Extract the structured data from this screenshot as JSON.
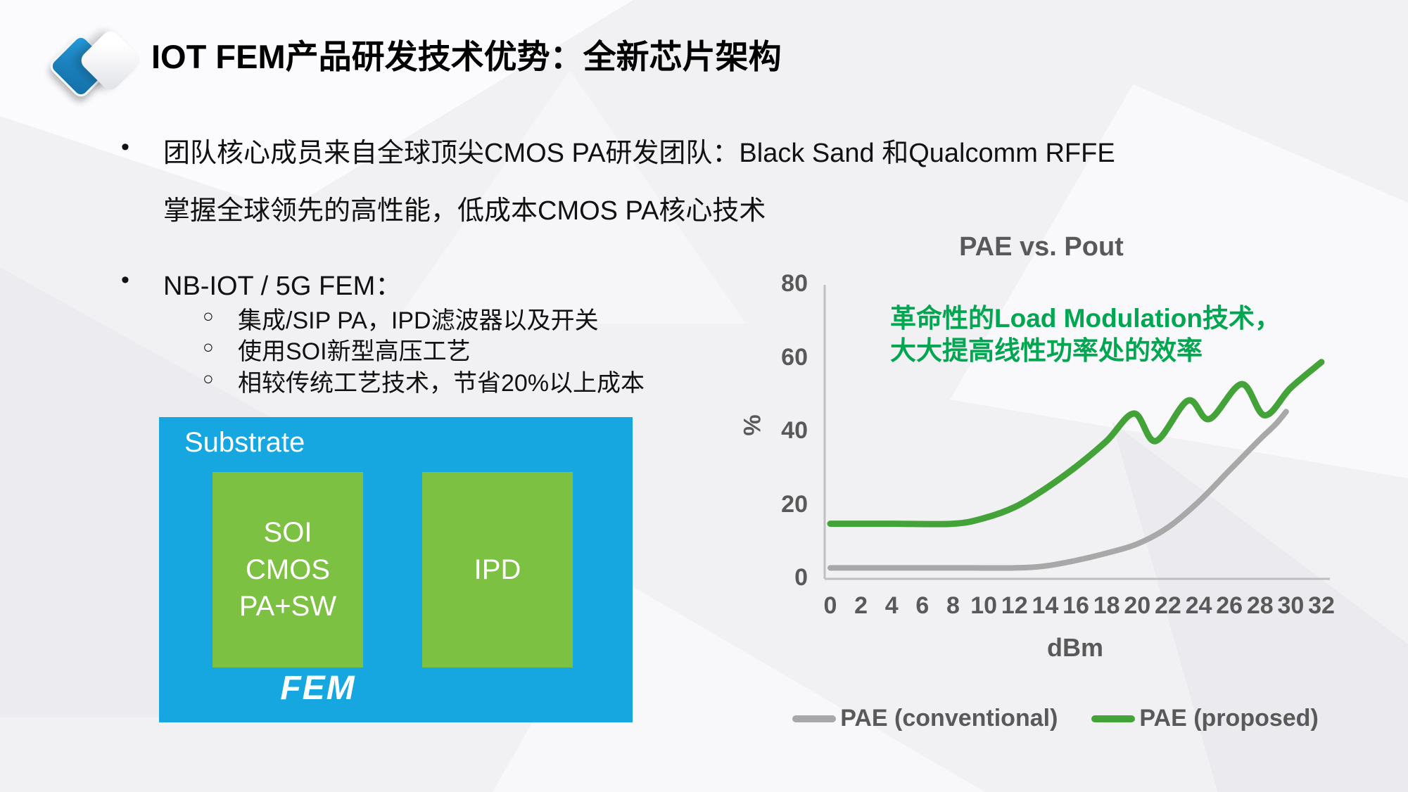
{
  "slide": {
    "title": "IOT FEM产品研发技术优势：全新芯片架构",
    "bullet_marker": "•",
    "sub_marker": "○",
    "bullet1_line1": "团队核心成员来自全球顶尖CMOS PA研发团队：Black Sand 和Qualcomm RFFE",
    "bullet1_line2": "掌握全球领先的高性能，低成本CMOS PA核心技术",
    "bullet2_label": "NB-IOT / 5G FEM：",
    "sub_bullets": [
      "集成/SIP PA，IPD滤波器以及开关",
      "使用SOI新型高压工艺",
      "相较传统工艺技术，节省20%以上成本"
    ]
  },
  "diagram": {
    "substrate_label": "Substrate",
    "chip1_lines": [
      "SOI",
      "CMOS",
      "PA+SW"
    ],
    "chip2_label": "IPD",
    "fem_label": "FEM",
    "colors": {
      "substrate_blue": "#17a7e0",
      "chip_green": "#7cc142"
    }
  },
  "chart_data": {
    "type": "line",
    "title": "PAE vs. Pout",
    "annotation_lines": [
      "革命性的Load Modulation技术，",
      "大大提高线性功率处的效率"
    ],
    "xlabel": "dBm",
    "ylabel": "%",
    "xlim": [
      0,
      32
    ],
    "ylim": [
      0,
      80
    ],
    "x_ticks": [
      0,
      2,
      4,
      6,
      8,
      10,
      12,
      14,
      16,
      18,
      20,
      22,
      24,
      26,
      28,
      30,
      32
    ],
    "y_ticks": [
      0,
      20,
      40,
      60,
      80
    ],
    "grid": false,
    "legend_position": "bottom",
    "axis_color": "#bfbfbf",
    "series": [
      {
        "name": "PAE (conventional)",
        "color": "#a8a8a8",
        "points": [
          [
            0,
            3
          ],
          [
            4,
            3
          ],
          [
            8,
            3
          ],
          [
            12,
            3
          ],
          [
            14,
            3.5
          ],
          [
            16,
            5
          ],
          [
            18,
            7
          ],
          [
            20,
            9.5
          ],
          [
            22,
            14
          ],
          [
            24,
            21
          ],
          [
            26,
            29.5
          ],
          [
            28,
            38
          ],
          [
            29,
            42
          ],
          [
            29.7,
            45.5
          ]
        ]
      },
      {
        "name": "PAE (proposed)",
        "color": "#44a338",
        "points": [
          [
            0,
            15
          ],
          [
            4,
            15
          ],
          [
            8,
            15
          ],
          [
            10,
            16.5
          ],
          [
            12,
            19.5
          ],
          [
            14,
            24.5
          ],
          [
            16,
            30.5
          ],
          [
            18,
            37.5
          ],
          [
            19.8,
            45
          ],
          [
            21.2,
            37.5
          ],
          [
            23.3,
            48.5
          ],
          [
            24.7,
            43.5
          ],
          [
            26.8,
            53
          ],
          [
            28.3,
            44.5
          ],
          [
            30,
            52
          ],
          [
            32,
            59
          ]
        ]
      }
    ]
  }
}
